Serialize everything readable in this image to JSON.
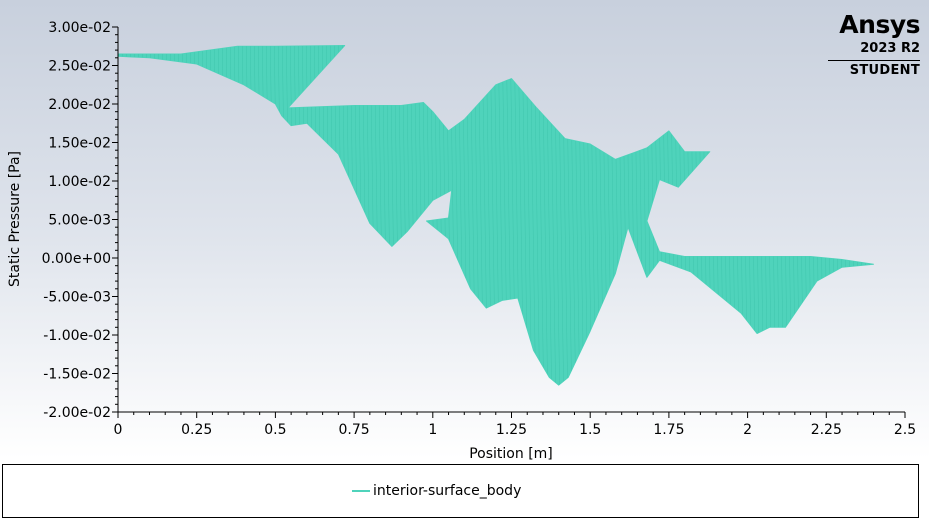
{
  "chart_data": {
    "type": "area",
    "xlabel": "Position [m]",
    "ylabel": "Static Pressure [Pa]",
    "xlim": [
      0,
      2.5
    ],
    "ylim": [
      -0.02,
      0.03
    ],
    "x_ticks": [
      "0",
      "0.25",
      "0.5",
      "0.75",
      "1",
      "1.25",
      "1.5",
      "1.75",
      "2",
      "2.25",
      "2.5"
    ],
    "x_tick_values": [
      0,
      0.25,
      0.5,
      0.75,
      1,
      1.25,
      1.5,
      1.75,
      2,
      2.25,
      2.5
    ],
    "y_ticks": [
      "3.00e-02",
      "2.50e-02",
      "2.00e-02",
      "1.50e-02",
      "1.00e-02",
      "5.00e-03",
      "0.00e+00",
      "-5.00e-03",
      "-1.00e-02",
      "-1.50e-02",
      "-2.00e-02"
    ],
    "y_tick_values": [
      0.03,
      0.025,
      0.02,
      0.015,
      0.01,
      0.005,
      0,
      -0.005,
      -0.01,
      -0.015,
      -0.02
    ],
    "grid": false,
    "legend_position": "bottom",
    "series": [
      {
        "name": "interior-surface_body",
        "color": "#4fd3bb",
        "upper": [
          {
            "x": 0.0,
            "y": 0.0265
          },
          {
            "x": 0.2,
            "y": 0.0265
          },
          {
            "x": 0.38,
            "y": 0.0275
          },
          {
            "x": 0.5,
            "y": 0.0275
          },
          {
            "x": 0.72,
            "y": 0.0276
          },
          {
            "x": 0.54,
            "y": 0.0195
          },
          {
            "x": 0.75,
            "y": 0.0198
          },
          {
            "x": 0.9,
            "y": 0.0198
          },
          {
            "x": 0.97,
            "y": 0.0202
          },
          {
            "x": 1.0,
            "y": 0.019
          },
          {
            "x": 1.05,
            "y": 0.0165
          },
          {
            "x": 1.1,
            "y": 0.018
          },
          {
            "x": 1.2,
            "y": 0.0225
          },
          {
            "x": 1.25,
            "y": 0.0233
          },
          {
            "x": 1.33,
            "y": 0.0195
          },
          {
            "x": 1.42,
            "y": 0.0155
          },
          {
            "x": 1.5,
            "y": 0.0148
          },
          {
            "x": 1.58,
            "y": 0.0128
          },
          {
            "x": 1.68,
            "y": 0.0143
          },
          {
            "x": 1.75,
            "y": 0.0165
          },
          {
            "x": 1.8,
            "y": 0.0138
          },
          {
            "x": 1.88,
            "y": 0.0138
          },
          {
            "x": 1.78,
            "y": 0.0092
          },
          {
            "x": 1.72,
            "y": 0.0102
          },
          {
            "x": 1.68,
            "y": 0.0048
          },
          {
            "x": 1.72,
            "y": 0.0008
          },
          {
            "x": 1.8,
            "y": 0.0002
          },
          {
            "x": 2.0,
            "y": 0.0002
          },
          {
            "x": 2.2,
            "y": 0.0002
          },
          {
            "x": 2.3,
            "y": -0.0002
          },
          {
            "x": 2.4,
            "y": -0.0008
          }
        ],
        "lower": [
          {
            "x": 2.4,
            "y": -0.0008
          },
          {
            "x": 2.3,
            "y": -0.0012
          },
          {
            "x": 2.22,
            "y": -0.003
          },
          {
            "x": 2.12,
            "y": -0.009
          },
          {
            "x": 2.07,
            "y": -0.009
          },
          {
            "x": 2.03,
            "y": -0.0098
          },
          {
            "x": 1.98,
            "y": -0.0072
          },
          {
            "x": 1.82,
            "y": -0.0018
          },
          {
            "x": 1.72,
            "y": -0.0003
          },
          {
            "x": 1.68,
            "y": -0.0025
          },
          {
            "x": 1.62,
            "y": 0.004
          },
          {
            "x": 1.58,
            "y": -0.002
          },
          {
            "x": 1.5,
            "y": -0.0095
          },
          {
            "x": 1.43,
            "y": -0.0155
          },
          {
            "x": 1.4,
            "y": -0.0165
          },
          {
            "x": 1.37,
            "y": -0.0155
          },
          {
            "x": 1.32,
            "y": -0.012
          },
          {
            "x": 1.27,
            "y": -0.0052
          },
          {
            "x": 1.22,
            "y": -0.0055
          },
          {
            "x": 1.17,
            "y": -0.0065
          },
          {
            "x": 1.12,
            "y": -0.004
          },
          {
            "x": 1.05,
            "y": 0.0025
          },
          {
            "x": 1.02,
            "y": 0.0035
          },
          {
            "x": 0.98,
            "y": 0.0048
          },
          {
            "x": 1.05,
            "y": 0.0052
          },
          {
            "x": 1.06,
            "y": 0.0088
          },
          {
            "x": 1.0,
            "y": 0.0075
          },
          {
            "x": 0.92,
            "y": 0.0035
          },
          {
            "x": 0.87,
            "y": 0.0015
          },
          {
            "x": 0.8,
            "y": 0.0045
          },
          {
            "x": 0.7,
            "y": 0.0135
          },
          {
            "x": 0.6,
            "y": 0.0175
          },
          {
            "x": 0.55,
            "y": 0.0172
          },
          {
            "x": 0.52,
            "y": 0.0185
          },
          {
            "x": 0.5,
            "y": 0.02
          },
          {
            "x": 0.4,
            "y": 0.0225
          },
          {
            "x": 0.25,
            "y": 0.0252
          },
          {
            "x": 0.1,
            "y": 0.026
          },
          {
            "x": 0.0,
            "y": 0.0262
          }
        ]
      }
    ]
  },
  "logo": {
    "name": "Ansys",
    "version": "2023 R2",
    "edition": "STUDENT"
  },
  "legend": {
    "label": "interior-surface_body"
  }
}
